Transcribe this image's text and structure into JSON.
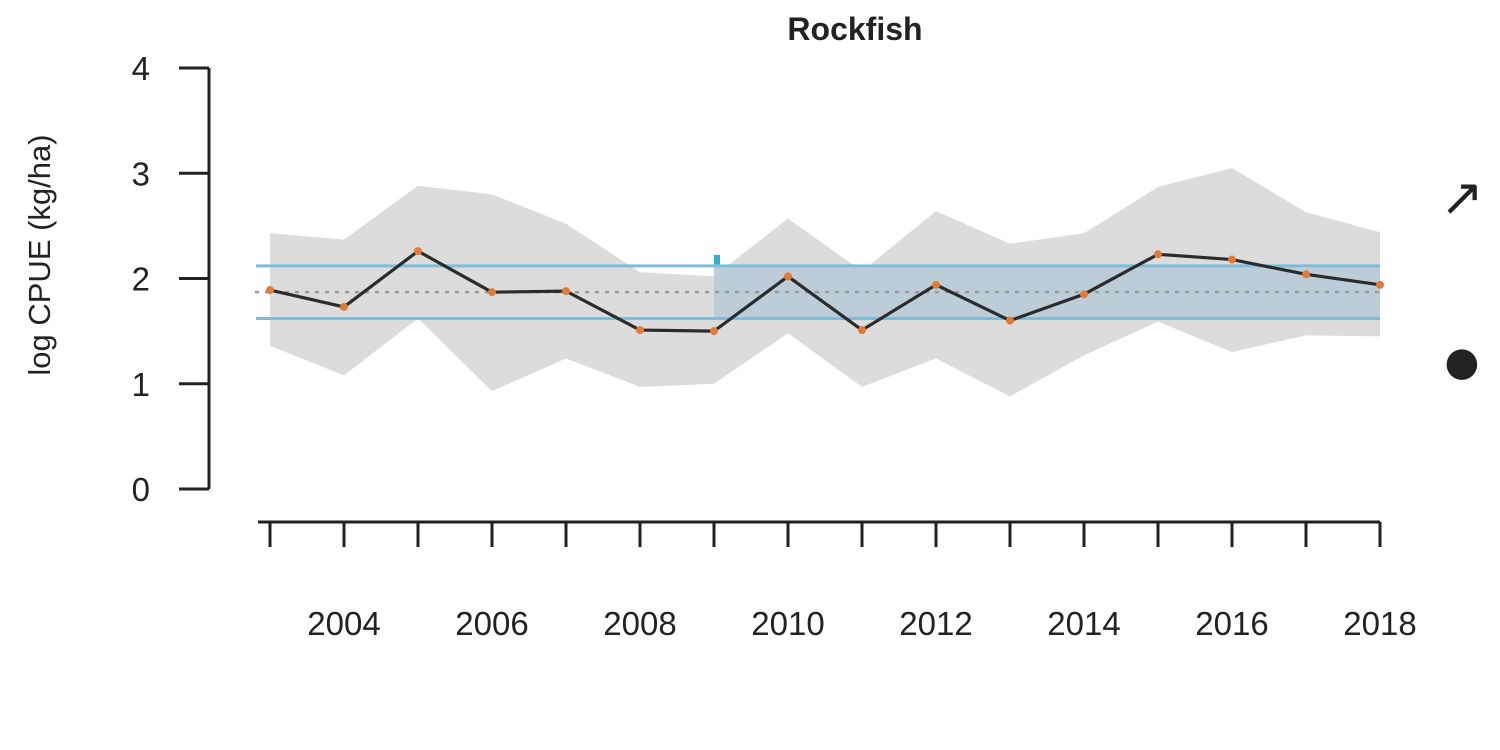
{
  "chart_data": {
    "type": "line",
    "title": "Rockfish",
    "xlabel": "",
    "ylabel": "log CPUE (kg/ha)",
    "x": [
      2003,
      2004,
      2005,
      2006,
      2007,
      2008,
      2009,
      2010,
      2011,
      2012,
      2013,
      2014,
      2015,
      2016,
      2017,
      2018
    ],
    "series": [
      {
        "values": [
          1.89,
          1.73,
          2.26,
          1.87,
          1.88,
          1.51,
          1.5,
          2.02,
          1.51,
          1.94,
          1.6,
          1.85,
          2.23,
          2.18,
          2.04,
          1.94
        ],
        "lower": [
          1.36,
          1.08,
          1.62,
          0.93,
          1.24,
          0.97,
          1.0,
          1.48,
          0.97,
          1.24,
          0.88,
          1.27,
          1.59,
          1.3,
          1.46,
          1.45
        ],
        "upper": [
          2.43,
          2.37,
          2.88,
          2.8,
          2.52,
          2.06,
          2.02,
          2.57,
          2.07,
          2.64,
          2.33,
          2.43,
          2.87,
          3.05,
          2.63,
          2.44
        ]
      }
    ],
    "mean": 1.87,
    "sd_band": [
      1.62,
      2.12
    ],
    "recent_period_start": 2009,
    "xlim": [
      2003,
      2018
    ],
    "ylim": [
      0,
      4
    ],
    "yticks": [
      0,
      1,
      2,
      3,
      4
    ],
    "xticks_labeled": [
      2004,
      2006,
      2008,
      2010,
      2012,
      2014,
      2016,
      2018
    ],
    "grid": false,
    "trend_symbol": "↗",
    "mean_symbol": "●",
    "colors": {
      "line": "#2b2b2b",
      "points": "#e07b39",
      "ci_band": "#dcdcdc",
      "sd_lines": "#7fbcd9",
      "sd_fill": "#b9cbd7",
      "recent_highlight": "#3ea8d6",
      "mean_line": "#999999"
    }
  }
}
